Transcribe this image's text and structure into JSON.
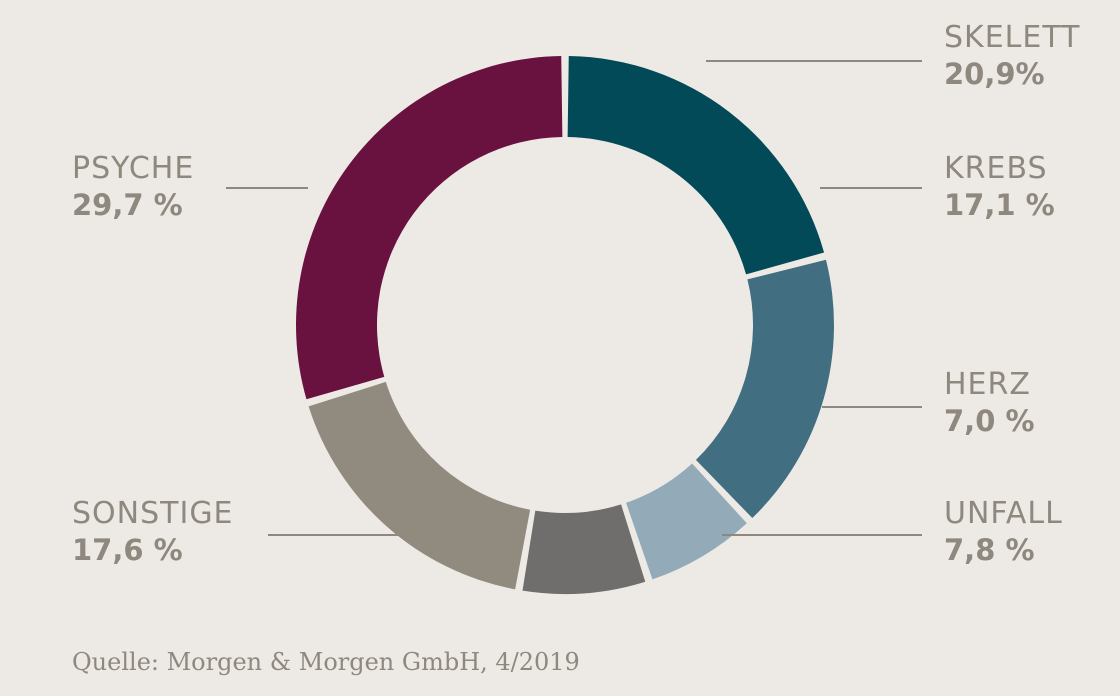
{
  "chart_data": {
    "type": "pie",
    "donut": true,
    "start": "top, clockwise",
    "slices": [
      {
        "label": "SKELETT",
        "value": 20.9,
        "display": "20,9%",
        "color": "#034a59"
      },
      {
        "label": "KREBS",
        "value": 17.1,
        "display": "17,1 %",
        "color": "#416f81"
      },
      {
        "label": "HERZ",
        "value": 7.0,
        "display": "7,0 %",
        "color": "#93abb8"
      },
      {
        "label": "UNFALL",
        "value": 7.8,
        "display": "7,8 %",
        "color": "#6f6e6c"
      },
      {
        "label": "SONSTIGE",
        "value": 17.6,
        "display": "17,6 %",
        "color": "#918a7e"
      },
      {
        "label": "PSYCHE",
        "value": 29.7,
        "display": "29,7 %",
        "color": "#6a123f"
      }
    ]
  },
  "source": "Quelle: Morgen & Morgen GmbH, 4/2019"
}
